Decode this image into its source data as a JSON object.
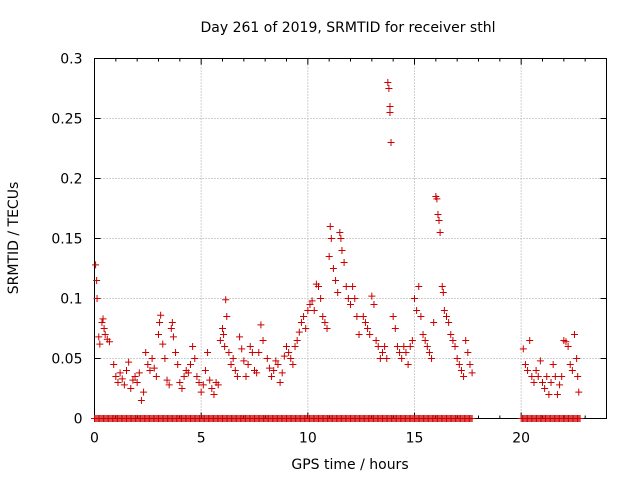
{
  "chart_data": {
    "type": "scatter",
    "title": "Day 261 of 2019, SRMTID for receiver sthl",
    "xlabel": "GPS time / hours",
    "ylabel": "SRMTID / TECUs",
    "xlim": [
      0,
      24
    ],
    "ylim": [
      0,
      0.3
    ],
    "x_ticks": [
      0,
      5,
      10,
      15,
      20
    ],
    "y_ticks": [
      0,
      0.05,
      0.1,
      0.15,
      0.2,
      0.25,
      0.3
    ],
    "y_tick_labels": [
      "0",
      "0.05",
      "0.1",
      "0.15",
      "0.2",
      "0.25",
      "0.3"
    ],
    "grid": true,
    "marker": "+",
    "color": "#cc0000",
    "zero_line_ranges": [
      [
        0,
        17.7
      ],
      [
        20.0,
        22.8
      ]
    ],
    "series": [
      {
        "name": "SRMTID",
        "points": [
          [
            0.05,
            0.128
          ],
          [
            0.1,
            0.115
          ],
          [
            0.12,
            0.1
          ],
          [
            0.2,
            0.068
          ],
          [
            0.25,
            0.062
          ],
          [
            0.35,
            0.08
          ],
          [
            0.4,
            0.083
          ],
          [
            0.45,
            0.075
          ],
          [
            0.5,
            0.07
          ],
          [
            0.6,
            0.066
          ],
          [
            0.7,
            0.064
          ],
          [
            0.9,
            0.045
          ],
          [
            1.0,
            0.035
          ],
          [
            1.1,
            0.03
          ],
          [
            1.2,
            0.038
          ],
          [
            1.3,
            0.033
          ],
          [
            1.4,
            0.028
          ],
          [
            1.5,
            0.04
          ],
          [
            1.6,
            0.047
          ],
          [
            1.7,
            0.025
          ],
          [
            1.8,
            0.032
          ],
          [
            1.9,
            0.035
          ],
          [
            2.0,
            0.03
          ],
          [
            2.1,
            0.038
          ],
          [
            2.2,
            0.015
          ],
          [
            2.3,
            0.022
          ],
          [
            2.4,
            0.055
          ],
          [
            2.5,
            0.045
          ],
          [
            2.6,
            0.04
          ],
          [
            2.7,
            0.05
          ],
          [
            2.8,
            0.042
          ],
          [
            2.9,
            0.035
          ],
          [
            3.0,
            0.07
          ],
          [
            3.05,
            0.08
          ],
          [
            3.1,
            0.086
          ],
          [
            3.2,
            0.062
          ],
          [
            3.3,
            0.05
          ],
          [
            3.4,
            0.032
          ],
          [
            3.5,
            0.028
          ],
          [
            3.6,
            0.075
          ],
          [
            3.65,
            0.08
          ],
          [
            3.7,
            0.068
          ],
          [
            3.8,
            0.055
          ],
          [
            3.9,
            0.045
          ],
          [
            4.0,
            0.03
          ],
          [
            4.1,
            0.025
          ],
          [
            4.2,
            0.035
          ],
          [
            4.3,
            0.04
          ],
          [
            4.4,
            0.038
          ],
          [
            4.5,
            0.045
          ],
          [
            4.6,
            0.06
          ],
          [
            4.7,
            0.05
          ],
          [
            4.8,
            0.035
          ],
          [
            4.9,
            0.03
          ],
          [
            5.0,
            0.022
          ],
          [
            5.1,
            0.028
          ],
          [
            5.2,
            0.04
          ],
          [
            5.3,
            0.055
          ],
          [
            5.4,
            0.032
          ],
          [
            5.5,
            0.025
          ],
          [
            5.6,
            0.02
          ],
          [
            5.7,
            0.03
          ],
          [
            5.8,
            0.028
          ],
          [
            5.9,
            0.065
          ],
          [
            6.0,
            0.075
          ],
          [
            6.05,
            0.07
          ],
          [
            6.1,
            0.06
          ],
          [
            6.15,
            0.099
          ],
          [
            6.2,
            0.085
          ],
          [
            6.3,
            0.055
          ],
          [
            6.4,
            0.045
          ],
          [
            6.5,
            0.05
          ],
          [
            6.6,
            0.04
          ],
          [
            6.7,
            0.035
          ],
          [
            6.8,
            0.068
          ],
          [
            6.9,
            0.058
          ],
          [
            7.0,
            0.048
          ],
          [
            7.1,
            0.035
          ],
          [
            7.2,
            0.045
          ],
          [
            7.3,
            0.06
          ],
          [
            7.4,
            0.055
          ],
          [
            7.5,
            0.04
          ],
          [
            7.6,
            0.038
          ],
          [
            7.7,
            0.055
          ],
          [
            7.8,
            0.078
          ],
          [
            7.9,
            0.065
          ],
          [
            8.1,
            0.05
          ],
          [
            8.2,
            0.042
          ],
          [
            8.3,
            0.035
          ],
          [
            8.4,
            0.04
          ],
          [
            8.5,
            0.048
          ],
          [
            8.6,
            0.045
          ],
          [
            8.7,
            0.03
          ],
          [
            8.8,
            0.038
          ],
          [
            8.9,
            0.052
          ],
          [
            9.0,
            0.06
          ],
          [
            9.1,
            0.055
          ],
          [
            9.2,
            0.05
          ],
          [
            9.3,
            0.045
          ],
          [
            9.4,
            0.06
          ],
          [
            9.5,
            0.065
          ],
          [
            9.6,
            0.072
          ],
          [
            9.7,
            0.08
          ],
          [
            9.8,
            0.085
          ],
          [
            9.9,
            0.075
          ],
          [
            10.0,
            0.09
          ],
          [
            10.1,
            0.095
          ],
          [
            10.2,
            0.098
          ],
          [
            10.3,
            0.09
          ],
          [
            10.4,
            0.112
          ],
          [
            10.5,
            0.11
          ],
          [
            10.6,
            0.1
          ],
          [
            10.7,
            0.085
          ],
          [
            10.8,
            0.08
          ],
          [
            10.9,
            0.075
          ],
          [
            11.0,
            0.135
          ],
          [
            11.05,
            0.16
          ],
          [
            11.1,
            0.15
          ],
          [
            11.2,
            0.125
          ],
          [
            11.3,
            0.115
          ],
          [
            11.4,
            0.105
          ],
          [
            11.5,
            0.155
          ],
          [
            11.55,
            0.15
          ],
          [
            11.6,
            0.14
          ],
          [
            11.7,
            0.13
          ],
          [
            11.8,
            0.11
          ],
          [
            11.9,
            0.1
          ],
          [
            12.0,
            0.095
          ],
          [
            12.1,
            0.11
          ],
          [
            12.2,
            0.1
          ],
          [
            12.3,
            0.085
          ],
          [
            12.4,
            0.07
          ],
          [
            12.6,
            0.085
          ],
          [
            12.7,
            0.08
          ],
          [
            12.8,
            0.075
          ],
          [
            12.9,
            0.07
          ],
          [
            13.0,
            0.102
          ],
          [
            13.1,
            0.095
          ],
          [
            13.2,
            0.065
          ],
          [
            13.3,
            0.06
          ],
          [
            13.4,
            0.05
          ],
          [
            13.5,
            0.055
          ],
          [
            13.6,
            0.06
          ],
          [
            13.7,
            0.05
          ],
          [
            13.75,
            0.28
          ],
          [
            13.8,
            0.275
          ],
          [
            13.85,
            0.26
          ],
          [
            13.85,
            0.255
          ],
          [
            13.9,
            0.23
          ],
          [
            14.0,
            0.085
          ],
          [
            14.1,
            0.075
          ],
          [
            14.2,
            0.06
          ],
          [
            14.3,
            0.055
          ],
          [
            14.4,
            0.05
          ],
          [
            14.5,
            0.06
          ],
          [
            14.6,
            0.055
          ],
          [
            14.7,
            0.045
          ],
          [
            14.8,
            0.06
          ],
          [
            14.9,
            0.065
          ],
          [
            15.0,
            0.1
          ],
          [
            15.1,
            0.09
          ],
          [
            15.2,
            0.11
          ],
          [
            15.3,
            0.085
          ],
          [
            15.4,
            0.07
          ],
          [
            15.5,
            0.065
          ],
          [
            15.6,
            0.06
          ],
          [
            15.7,
            0.055
          ],
          [
            15.8,
            0.05
          ],
          [
            15.9,
            0.08
          ],
          [
            16.0,
            0.185
          ],
          [
            16.05,
            0.183
          ],
          [
            16.1,
            0.17
          ],
          [
            16.15,
            0.165
          ],
          [
            16.2,
            0.155
          ],
          [
            16.3,
            0.11
          ],
          [
            16.35,
            0.105
          ],
          [
            16.4,
            0.09
          ],
          [
            16.5,
            0.085
          ],
          [
            16.6,
            0.08
          ],
          [
            16.7,
            0.07
          ],
          [
            16.8,
            0.065
          ],
          [
            16.9,
            0.06
          ],
          [
            17.0,
            0.05
          ],
          [
            17.1,
            0.045
          ],
          [
            17.2,
            0.04
          ],
          [
            17.3,
            0.035
          ],
          [
            17.4,
            0.065
          ],
          [
            17.5,
            0.055
          ],
          [
            17.6,
            0.045
          ],
          [
            17.7,
            0.038
          ],
          [
            20.1,
            0.058
          ],
          [
            20.2,
            0.045
          ],
          [
            20.3,
            0.04
          ],
          [
            20.4,
            0.065
          ],
          [
            20.5,
            0.035
          ],
          [
            20.6,
            0.03
          ],
          [
            20.7,
            0.04
          ],
          [
            20.8,
            0.035
          ],
          [
            20.9,
            0.048
          ],
          [
            21.0,
            0.03
          ],
          [
            21.1,
            0.025
          ],
          [
            21.2,
            0.035
          ],
          [
            21.3,
            0.02
          ],
          [
            21.4,
            0.03
          ],
          [
            21.5,
            0.045
          ],
          [
            21.6,
            0.035
          ],
          [
            21.7,
            0.02
          ],
          [
            21.8,
            0.028
          ],
          [
            21.9,
            0.035
          ],
          [
            22.0,
            0.065
          ],
          [
            22.1,
            0.064
          ],
          [
            22.2,
            0.06
          ],
          [
            22.3,
            0.045
          ],
          [
            22.4,
            0.04
          ],
          [
            22.5,
            0.07
          ],
          [
            22.6,
            0.05
          ],
          [
            22.65,
            0.035
          ],
          [
            22.7,
            0.022
          ]
        ]
      }
    ]
  }
}
